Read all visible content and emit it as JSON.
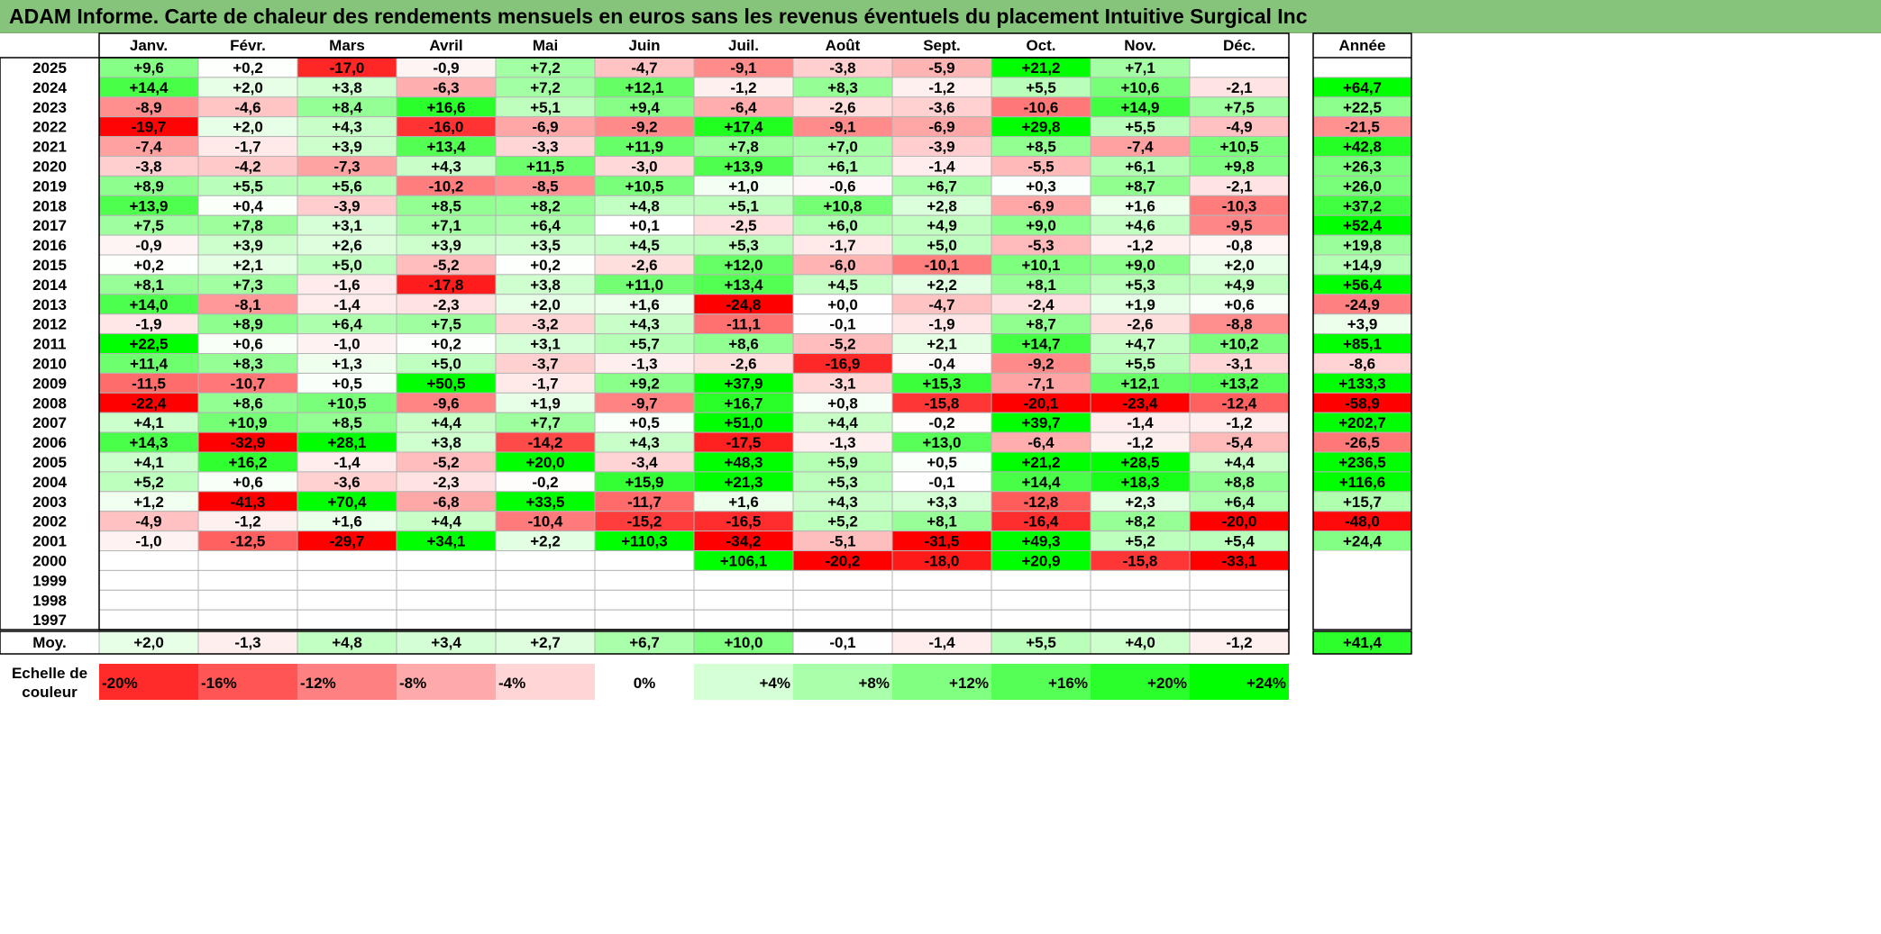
{
  "title": "ADAM Informe. Carte de chaleur des rendements mensuels en euros sans les revenus éventuels du placement Intuitive Surgical Inc",
  "colors": {
    "title_bar": "#85c47a",
    "negative_max": "#ff0000",
    "positive_max": "#00ff00",
    "neutral": "#ffffff",
    "grid": "#b4b4b4",
    "border": "#000000"
  },
  "chart_data": {
    "type": "heatmap",
    "months": [
      "Janv.",
      "Févr.",
      "Mars",
      "Avril",
      "Mai",
      "Juin",
      "Juil.",
      "Août",
      "Sept.",
      "Oct.",
      "Nov.",
      "Déc."
    ],
    "year_header": "Année",
    "avg_label": "Moy.",
    "scale_label": [
      "Echelle de",
      "couleur"
    ],
    "rows": [
      {
        "year": "2025",
        "values": [
          "+9,6",
          "+0,2",
          "-17,0",
          "-0,9",
          "+7,2",
          "-4,7",
          "-9,1",
          "-3,8",
          "-5,9",
          "+21,2",
          "+7,1",
          ""
        ],
        "annual": ""
      },
      {
        "year": "2024",
        "values": [
          "+14,4",
          "+2,0",
          "+3,8",
          "-6,3",
          "+7,2",
          "+12,1",
          "-1,2",
          "+8,3",
          "-1,2",
          "+5,5",
          "+10,6",
          "-2,1"
        ],
        "annual": "+64,7"
      },
      {
        "year": "2023",
        "values": [
          "-8,9",
          "-4,6",
          "+8,4",
          "+16,6",
          "+5,1",
          "+9,4",
          "-6,4",
          "-2,6",
          "-3,6",
          "-10,6",
          "+14,9",
          "+7,5"
        ],
        "annual": "+22,5"
      },
      {
        "year": "2022",
        "values": [
          "-19,7",
          "+2,0",
          "+4,3",
          "-16,0",
          "-6,9",
          "-9,2",
          "+17,4",
          "-9,1",
          "-6,9",
          "+29,8",
          "+5,5",
          "-4,9"
        ],
        "annual": "-21,5"
      },
      {
        "year": "2021",
        "values": [
          "-7,4",
          "-1,7",
          "+3,9",
          "+13,4",
          "-3,3",
          "+11,9",
          "+7,8",
          "+7,0",
          "-3,9",
          "+8,5",
          "-7,4",
          "+10,5"
        ],
        "annual": "+42,8"
      },
      {
        "year": "2020",
        "values": [
          "-3,8",
          "-4,2",
          "-7,3",
          "+4,3",
          "+11,5",
          "-3,0",
          "+13,9",
          "+6,1",
          "-1,4",
          "-5,5",
          "+6,1",
          "+9,8"
        ],
        "annual": "+26,3"
      },
      {
        "year": "2019",
        "values": [
          "+8,9",
          "+5,5",
          "+5,6",
          "-10,2",
          "-8,5",
          "+10,5",
          "+1,0",
          "-0,6",
          "+6,7",
          "+0,3",
          "+8,7",
          "-2,1"
        ],
        "annual": "+26,0"
      },
      {
        "year": "2018",
        "values": [
          "+13,9",
          "+0,4",
          "-3,9",
          "+8,5",
          "+8,2",
          "+4,8",
          "+5,1",
          "+10,8",
          "+2,8",
          "-6,9",
          "+1,6",
          "-10,3"
        ],
        "annual": "+37,2"
      },
      {
        "year": "2017",
        "values": [
          "+7,5",
          "+7,8",
          "+3,1",
          "+7,1",
          "+6,4",
          "+0,1",
          "-2,5",
          "+6,0",
          "+4,9",
          "+9,0",
          "+4,6",
          "-9,5"
        ],
        "annual": "+52,4"
      },
      {
        "year": "2016",
        "values": [
          "-0,9",
          "+3,9",
          "+2,6",
          "+3,9",
          "+3,5",
          "+4,5",
          "+5,3",
          "-1,7",
          "+5,0",
          "-5,3",
          "-1,2",
          "-0,8"
        ],
        "annual": "+19,8"
      },
      {
        "year": "2015",
        "values": [
          "+0,2",
          "+2,1",
          "+5,0",
          "-5,2",
          "+0,2",
          "-2,6",
          "+12,0",
          "-6,0",
          "-10,1",
          "+10,1",
          "+9,0",
          "+2,0"
        ],
        "annual": "+14,9"
      },
      {
        "year": "2014",
        "values": [
          "+8,1",
          "+7,3",
          "-1,6",
          "-17,8",
          "+3,8",
          "+11,0",
          "+13,4",
          "+4,5",
          "+2,2",
          "+8,1",
          "+5,3",
          "+4,9"
        ],
        "annual": "+56,4"
      },
      {
        "year": "2013",
        "values": [
          "+14,0",
          "-8,1",
          "-1,4",
          "-2,3",
          "+2,0",
          "+1,6",
          "-24,8",
          "+0,0",
          "-4,7",
          "-2,4",
          "+1,9",
          "+0,6"
        ],
        "annual": "-24,9"
      },
      {
        "year": "2012",
        "values": [
          "-1,9",
          "+8,9",
          "+6,4",
          "+7,5",
          "-3,2",
          "+4,3",
          "-11,1",
          "-0,1",
          "-1,9",
          "+8,7",
          "-2,6",
          "-8,8"
        ],
        "annual": "+3,9"
      },
      {
        "year": "2011",
        "values": [
          "+22,5",
          "+0,6",
          "-1,0",
          "+0,2",
          "+3,1",
          "+5,7",
          "+8,6",
          "-5,2",
          "+2,1",
          "+14,7",
          "+4,7",
          "+10,2"
        ],
        "annual": "+85,1"
      },
      {
        "year": "2010",
        "values": [
          "+11,4",
          "+8,3",
          "+1,3",
          "+5,0",
          "-3,7",
          "-1,3",
          "-2,6",
          "-16,9",
          "-0,4",
          "-9,2",
          "+5,5",
          "-3,1"
        ],
        "annual": "-8,6"
      },
      {
        "year": "2009",
        "values": [
          "-11,5",
          "-10,7",
          "+0,5",
          "+50,5",
          "-1,7",
          "+9,2",
          "+37,9",
          "-3,1",
          "+15,3",
          "-7,1",
          "+12,1",
          "+13,2"
        ],
        "annual": "+133,3"
      },
      {
        "year": "2008",
        "values": [
          "-22,4",
          "+8,6",
          "+10,5",
          "-9,6",
          "+1,9",
          "-9,7",
          "+16,7",
          "+0,8",
          "-15,8",
          "-20,1",
          "-23,4",
          "-12,4"
        ],
        "annual": "-58,9"
      },
      {
        "year": "2007",
        "values": [
          "+4,1",
          "+10,9",
          "+8,5",
          "+4,4",
          "+7,7",
          "+0,5",
          "+51,0",
          "+4,4",
          "-0,2",
          "+39,7",
          "-1,4",
          "-1,2"
        ],
        "annual": "+202,7"
      },
      {
        "year": "2006",
        "values": [
          "+14,3",
          "-32,9",
          "+28,1",
          "+3,8",
          "-14,2",
          "+4,3",
          "-17,5",
          "-1,3",
          "+13,0",
          "-6,4",
          "-1,2",
          "-5,4"
        ],
        "annual": "-26,5"
      },
      {
        "year": "2005",
        "values": [
          "+4,1",
          "+16,2",
          "-1,4",
          "-5,2",
          "+20,0",
          "-3,4",
          "+48,3",
          "+5,9",
          "+0,5",
          "+21,2",
          "+28,5",
          "+4,4"
        ],
        "annual": "+236,5"
      },
      {
        "year": "2004",
        "values": [
          "+5,2",
          "+0,6",
          "-3,6",
          "-2,3",
          "-0,2",
          "+15,9",
          "+21,3",
          "+5,3",
          "-0,1",
          "+14,4",
          "+18,3",
          "+8,8"
        ],
        "annual": "+116,6"
      },
      {
        "year": "2003",
        "values": [
          "+1,2",
          "-41,3",
          "+70,4",
          "-6,8",
          "+33,5",
          "-11,7",
          "+1,6",
          "+4,3",
          "+3,3",
          "-12,8",
          "+2,3",
          "+6,4"
        ],
        "annual": "+15,7"
      },
      {
        "year": "2002",
        "values": [
          "-4,9",
          "-1,2",
          "+1,6",
          "+4,4",
          "-10,4",
          "-15,2",
          "-16,5",
          "+5,2",
          "+8,1",
          "-16,4",
          "+8,2",
          "-20,0"
        ],
        "annual": "-48,0"
      },
      {
        "year": "2001",
        "values": [
          "-1,0",
          "-12,5",
          "-29,7",
          "+34,1",
          "+2,2",
          "+110,3",
          "-34,2",
          "-5,1",
          "-31,5",
          "+49,3",
          "+5,2",
          "+5,4"
        ],
        "annual": "+24,4"
      },
      {
        "year": "2000",
        "values": [
          "",
          "",
          "",
          "",
          "",
          "",
          "+106,1",
          "-20,2",
          "-18,0",
          "+20,9",
          "-15,8",
          "-33,1"
        ],
        "annual": ""
      },
      {
        "year": "1999",
        "values": [
          "",
          "",
          "",
          "",
          "",
          "",
          "",
          "",
          "",
          "",
          "",
          ""
        ],
        "annual": ""
      },
      {
        "year": "1998",
        "values": [
          "",
          "",
          "",
          "",
          "",
          "",
          "",
          "",
          "",
          "",
          "",
          ""
        ],
        "annual": ""
      },
      {
        "year": "1997",
        "values": [
          "",
          "",
          "",
          "",
          "",
          "",
          "",
          "",
          "",
          "",
          "",
          ""
        ],
        "annual": ""
      }
    ],
    "average": {
      "values": [
        "+2,0",
        "-1,3",
        "+4,8",
        "+3,4",
        "+2,7",
        "+6,7",
        "+10,0",
        "-0,1",
        "-1,4",
        "+5,5",
        "+4,0",
        "-1,2"
      ],
      "annual": "+41,4"
    },
    "scale": [
      {
        "label": "-20%",
        "value": -20
      },
      {
        "label": "-16%",
        "value": -16
      },
      {
        "label": "-12%",
        "value": -12
      },
      {
        "label": "-8%",
        "value": -8
      },
      {
        "label": "-4%",
        "value": -4
      },
      {
        "label": "0%",
        "value": 0
      },
      {
        "label": "+4%",
        "value": 4
      },
      {
        "label": "+8%",
        "value": 8
      },
      {
        "label": "+12%",
        "value": 12
      },
      {
        "label": "+16%",
        "value": 16
      },
      {
        "label": "+20%",
        "value": 20
      },
      {
        "label": "+24%",
        "value": 24
      }
    ]
  }
}
